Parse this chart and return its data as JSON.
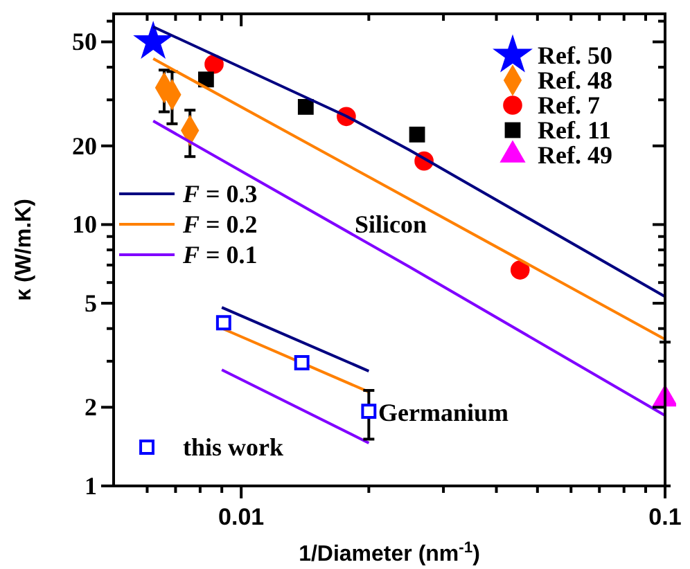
{
  "chart_data": {
    "type": "scatter",
    "xlabel": "1/Diameter (nm$^{-1}$)",
    "ylabel": "κ (W/m.K)",
    "log": "xy",
    "xlim": [
      0.005,
      0.1
    ],
    "ylim": [
      1,
      64
    ],
    "xticks": [
      {
        "value": 0.006,
        "label": null
      },
      {
        "value": 0.007,
        "label": null
      },
      {
        "value": 0.008,
        "label": null
      },
      {
        "value": 0.009,
        "label": null
      },
      0.01,
      {
        "value": 0.02,
        "label": null
      },
      {
        "value": 0.03,
        "label": null
      },
      {
        "value": 0.04,
        "label": null
      },
      {
        "value": 0.05,
        "label": null
      },
      {
        "value": 0.06,
        "label": null
      },
      {
        "value": 0.07,
        "label": null
      },
      {
        "value": 0.08,
        "label": null
      },
      {
        "value": 0.09,
        "label": null
      },
      0.1
    ],
    "yticks": [
      1,
      2,
      {
        "value": 3,
        "label": null
      },
      {
        "value": 4,
        "label": null
      },
      5,
      {
        "value": 6,
        "label": null
      },
      {
        "value": 7,
        "label": null
      },
      {
        "value": 8,
        "label": null
      },
      {
        "value": 9,
        "label": null
      },
      10,
      20,
      {
        "value": 30,
        "label": null
      },
      {
        "value": 40,
        "label": null
      },
      50,
      {
        "value": 60,
        "label": null
      }
    ],
    "grid": false,
    "legend": "top right",
    "annotations": [
      "Silicon",
      "Germanium"
    ],
    "series": [
      {
        "name": "Ref. 50",
        "color": "#0000ff",
        "marker": "star",
        "x": [
          0.0062
        ],
        "values": [
          50
        ]
      },
      {
        "name": "Ref. 48",
        "color": "#ff8000",
        "marker": "diamond",
        "x": [
          0.00658,
          0.00687,
          0.00757
        ],
        "values": [
          33.4,
          31.4,
          22.9
        ],
        "errors": [
          [
            27,
            39
          ],
          [
            24.3,
            38.5
          ],
          [
            18.2,
            27.4
          ]
        ]
      },
      {
        "name": "Ref. 7",
        "color": "#ff0000",
        "marker": "circle",
        "x": [
          0.00863,
          0.0177,
          0.027,
          0.0455
        ],
        "values": [
          41.1,
          25.9,
          17.5,
          6.7
        ]
      },
      {
        "name": "Ref. 11",
        "color": "#000000",
        "marker": "square",
        "x": [
          0.00826,
          0.0142,
          0.026
        ],
        "values": [
          35.9,
          28.2,
          22.1
        ]
      },
      {
        "name": "Ref. 49",
        "color": "#ff00ff",
        "marker": "triangle",
        "x": [
          0.1
        ],
        "values": [
          2.15
        ],
        "errors": [
          [
            1,
            3.55
          ]
        ]
      },
      {
        "type": "line",
        "name": "F = 0.3",
        "color": "#000080",
        "x": [
          0.0062,
          0.0177,
          0.0249,
          0.1
        ],
        "values": [
          57.1,
          26,
          19.3,
          5.3
        ]
      },
      {
        "type": "line",
        "name": "F = 0.2",
        "color": "#ff8000",
        "x": [
          0.0062,
          0.1
        ],
        "values": [
          43.1,
          3.64
        ]
      },
      {
        "type": "line",
        "name": "F = 0.1",
        "color": "#8000ff",
        "x": [
          0.0062,
          0.0249,
          0.1
        ],
        "values": [
          24.9,
          6.9,
          1.86
        ]
      },
      {
        "type": "line",
        "color": "#000080",
        "x": [
          0.009,
          0.02
        ],
        "values": [
          4.82,
          2.75
        ]
      },
      {
        "type": "line",
        "color": "#ff8000",
        "x": [
          0.009,
          0.02
        ],
        "values": [
          4.01,
          2.29
        ]
      },
      {
        "type": "line",
        "color": "#8000ff",
        "x": [
          0.009,
          0.02
        ],
        "values": [
          2.78,
          1.46
        ]
      },
      {
        "name": "this work",
        "color": "#0000ff",
        "marker": "square-open",
        "x": [
          0.00909,
          0.0139,
          0.02
        ],
        "values": [
          4.21,
          2.96,
          1.93
        ],
        "errors": [
          null,
          null,
          [
            1.51,
            2.32
          ]
        ]
      }
    ]
  }
}
